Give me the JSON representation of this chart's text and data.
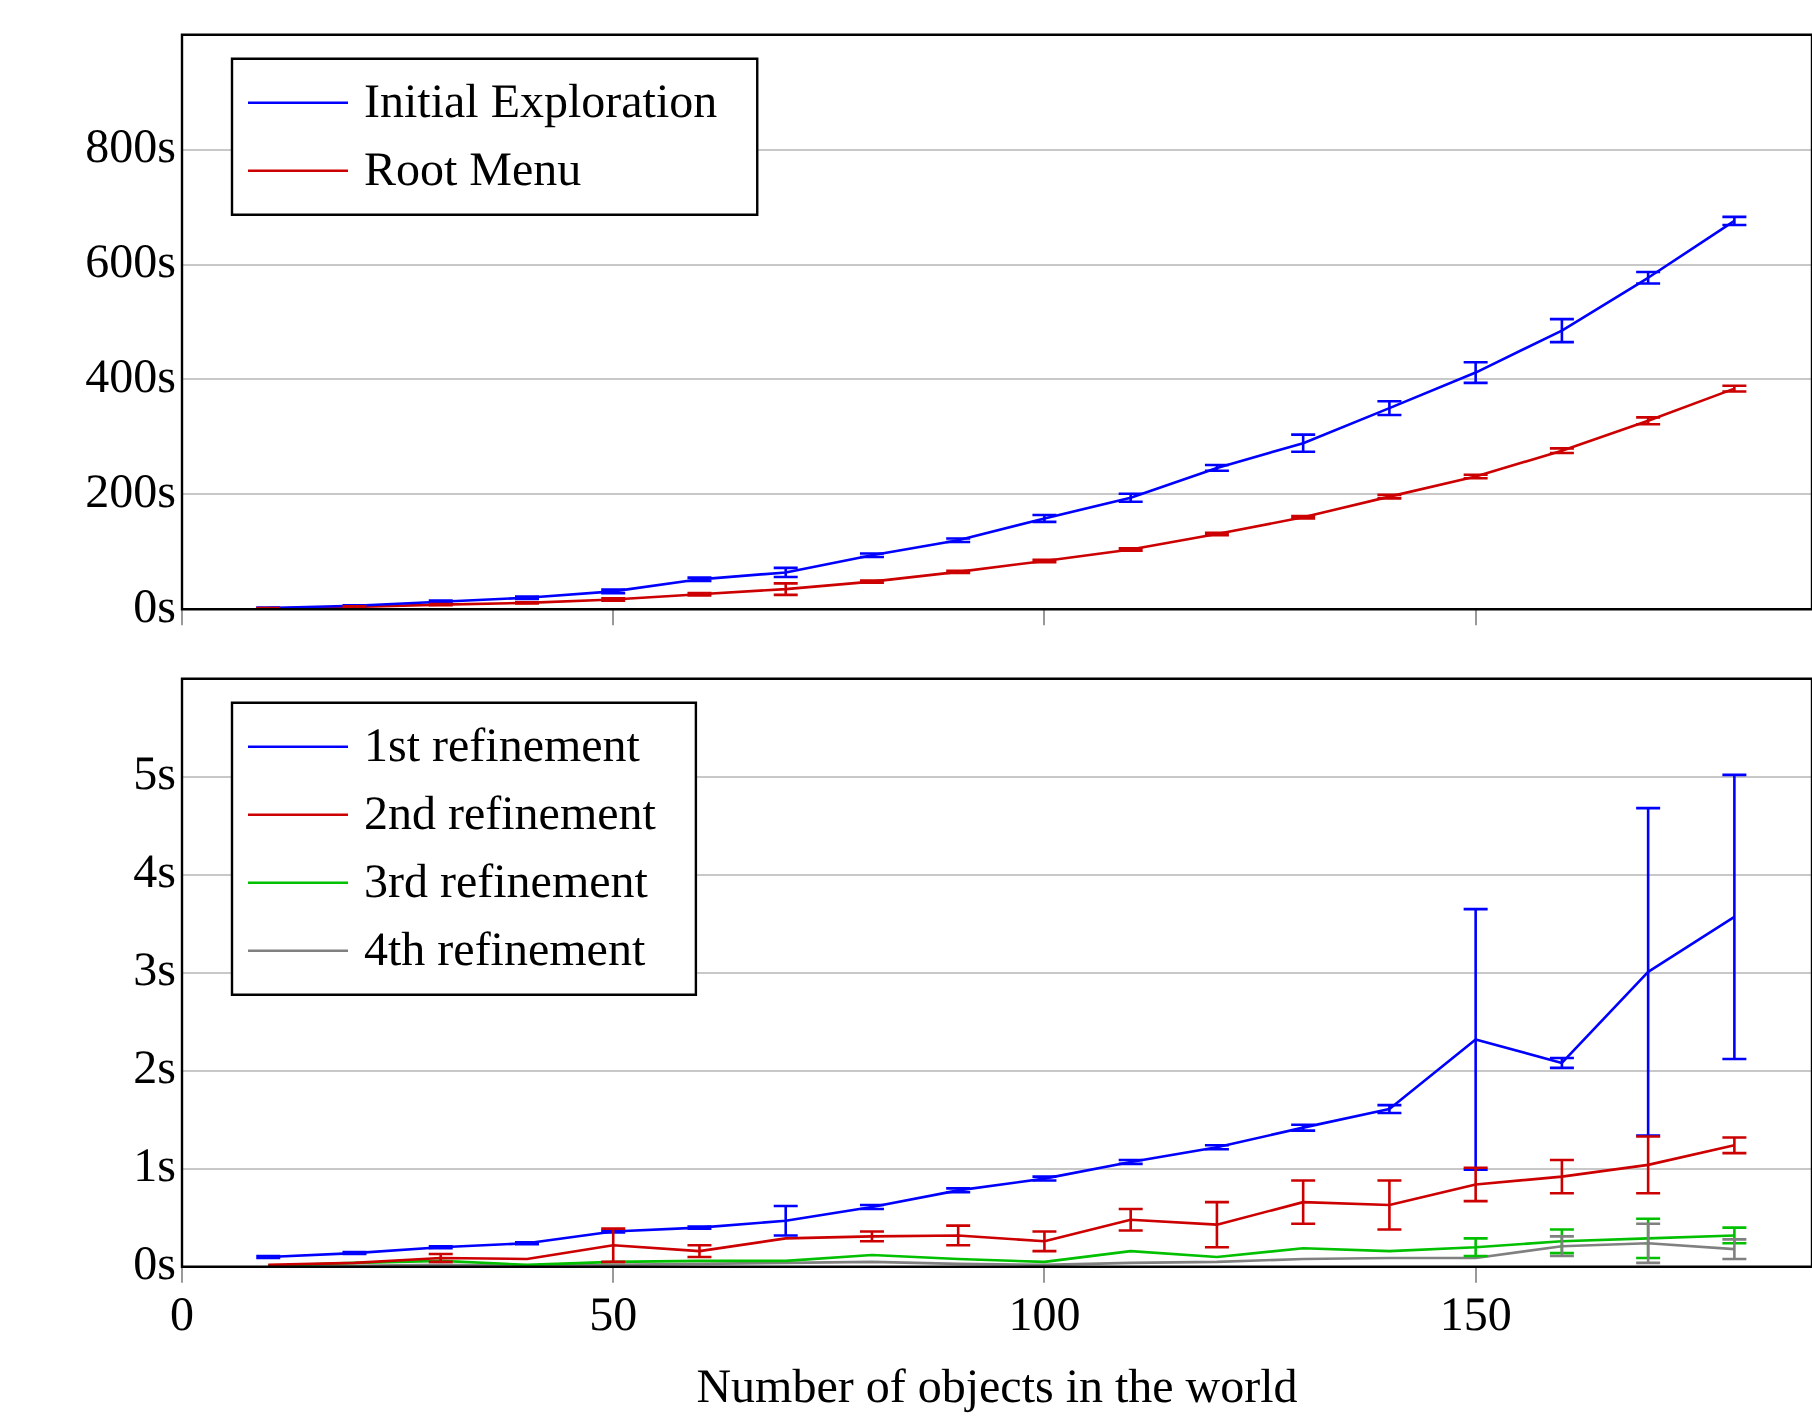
{
  "chart_data": [
    {
      "type": "line",
      "x": [
        10,
        20,
        30,
        40,
        50,
        60,
        70,
        80,
        90,
        100,
        110,
        120,
        130,
        140,
        150,
        160,
        170,
        180
      ],
      "xlim": [
        0,
        189
      ],
      "xticks": [
        0,
        50,
        100,
        150
      ],
      "ylim": [
        0,
        1000
      ],
      "yticks": [
        {
          "value": 0,
          "label": "0s"
        },
        {
          "value": 200,
          "label": "200s"
        },
        {
          "value": 400,
          "label": "400s"
        },
        {
          "value": 600,
          "label": "600s"
        },
        {
          "value": 800,
          "label": "800s"
        }
      ],
      "tick_labels": "y",
      "grid": "y",
      "legend": "top left",
      "marker": "none",
      "series": [
        {
          "name": "Initial Exploration",
          "color": "#0000ff",
          "values": [
            2,
            6,
            13,
            20,
            31,
            52,
            64,
            94,
            120,
            158,
            194,
            246,
            289,
            350,
            412,
            485,
            577,
            676
          ],
          "errors": [
            1,
            1,
            2,
            2,
            3,
            3,
            8,
            3,
            3,
            6,
            7,
            5,
            15,
            12,
            18,
            20,
            10,
            7
          ]
        },
        {
          "name": "Root Menu",
          "color": "#cc0000",
          "values": [
            1,
            4,
            8,
            11,
            17,
            26,
            35,
            48,
            65,
            84,
            104,
            131,
            160,
            196,
            231,
            276,
            328,
            384
          ],
          "errors": [
            1,
            1,
            1,
            1,
            2,
            2,
            10,
            2,
            2,
            2,
            2,
            2,
            2,
            3,
            3,
            4,
            6,
            5
          ]
        }
      ]
    },
    {
      "type": "line",
      "xlabel": "Number of objects in the world",
      "x": [
        10,
        20,
        30,
        40,
        50,
        60,
        70,
        80,
        90,
        100,
        110,
        120,
        130,
        140,
        150,
        160,
        170,
        180
      ],
      "xlim": [
        0,
        189
      ],
      "xticks": [
        0,
        50,
        100,
        150
      ],
      "ylim": [
        0,
        6
      ],
      "yticks": [
        {
          "value": 0,
          "label": "0s"
        },
        {
          "value": 1,
          "label": "1s"
        },
        {
          "value": 2,
          "label": "2s"
        },
        {
          "value": 3,
          "label": "3s"
        },
        {
          "value": 4,
          "label": "4s"
        },
        {
          "value": 5,
          "label": "5s"
        }
      ],
      "grid": "y",
      "legend": "top left",
      "marker": "none",
      "series": [
        {
          "name": "1st refinement",
          "color": "#0000ff",
          "values": [
            0.1,
            0.14,
            0.2,
            0.24,
            0.36,
            0.4,
            0.47,
            0.61,
            0.78,
            0.9,
            1.07,
            1.22,
            1.42,
            1.61,
            2.32,
            2.08,
            3.01,
            3.57
          ],
          "errors": [
            0.01,
            0.01,
            0.01,
            0.01,
            0.01,
            0.01,
            0.15,
            0.02,
            0.02,
            0.02,
            0.02,
            0.02,
            0.03,
            0.04,
            1.33,
            0.05,
            1.67,
            1.45
          ]
        },
        {
          "name": "2nd refinement",
          "color": "#cc0000",
          "values": [
            0.02,
            0.04,
            0.09,
            0.08,
            0.22,
            0.16,
            0.29,
            0.31,
            0.32,
            0.26,
            0.48,
            0.43,
            0.66,
            0.63,
            0.84,
            0.92,
            1.04,
            1.24
          ],
          "errors": [
            null,
            null,
            0.04,
            null,
            0.17,
            0.06,
            null,
            0.05,
            0.1,
            0.1,
            0.11,
            0.23,
            0.22,
            0.25,
            0.17,
            0.17,
            0.29,
            0.08
          ]
        },
        {
          "name": "3rd refinement",
          "color": "#00c000",
          "values": [
            0.01,
            0.04,
            0.06,
            0.02,
            0.05,
            0.06,
            0.06,
            0.12,
            0.08,
            0.05,
            0.16,
            0.1,
            0.19,
            0.16,
            0.2,
            0.26,
            0.29,
            0.32
          ],
          "errors": [
            null,
            null,
            null,
            null,
            null,
            null,
            null,
            null,
            null,
            null,
            null,
            null,
            null,
            null,
            0.09,
            0.12,
            0.2,
            0.08
          ]
        },
        {
          "name": "4th refinement",
          "color": "#808080",
          "values": [
            0.01,
            0.01,
            0.02,
            0.01,
            0.02,
            0.03,
            0.04,
            0.05,
            0.03,
            0.02,
            0.04,
            0.05,
            0.08,
            0.09,
            0.09,
            0.21,
            0.24,
            0.18
          ],
          "errors": [
            null,
            null,
            null,
            null,
            null,
            null,
            null,
            null,
            null,
            null,
            null,
            null,
            null,
            null,
            null,
            0.1,
            0.2,
            0.1
          ]
        }
      ]
    }
  ]
}
